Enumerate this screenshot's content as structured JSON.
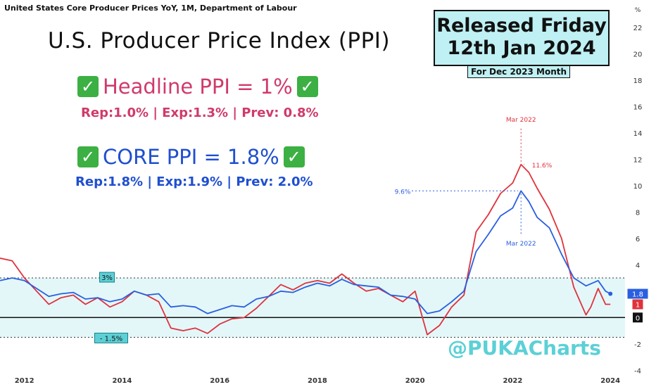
{
  "header": {
    "source": "United States Core Producer Prices YoY, 1M, Department of Labour",
    "title": "U.S. Producer Price Index (PPI)"
  },
  "headline": {
    "label": "Headline PPI = 1%",
    "details": "Rep:1.0%  | Exp:1.3% | Prev: 0.8%",
    "color": "#d03a6a"
  },
  "core": {
    "label": "CORE PPI = 1.8%",
    "details": "Rep:1.8%  | Exp:1.9% | Prev: 2.0%",
    "color": "#1f4fcf"
  },
  "release": {
    "line1": "Released Friday",
    "line2": "12th Jan 2024",
    "month": "For Dec 2023 Month"
  },
  "watermark": "@PUKACharts",
  "chart_data": {
    "type": "line",
    "y_unit_label": "%",
    "x_ticks": [
      "2012",
      "2014",
      "2016",
      "2018",
      "2020",
      "2022",
      "2024"
    ],
    "x_tick_values": [
      2012,
      2014,
      2016,
      2018,
      2020,
      2022,
      2024
    ],
    "y_ticks": [
      -4,
      -2,
      0,
      2,
      4,
      6,
      8,
      10,
      12,
      14,
      16,
      18,
      20,
      22
    ],
    "xlim": [
      2011.5,
      2024.3
    ],
    "ylim": [
      -4.2,
      23
    ],
    "band": {
      "low": -1.5,
      "high": 3.0,
      "high_label": "3%",
      "low_label": "- 1.5%"
    },
    "zero_line": 0,
    "series": [
      {
        "name": "Headline PPI",
        "color": "#e0323c",
        "last_label": "1",
        "points": [
          [
            2011.5,
            4.5
          ],
          [
            2011.75,
            4.3
          ],
          [
            2012.0,
            3.0
          ],
          [
            2012.25,
            2.0
          ],
          [
            2012.5,
            1.0
          ],
          [
            2012.75,
            1.5
          ],
          [
            2013.0,
            1.7
          ],
          [
            2013.25,
            1.0
          ],
          [
            2013.5,
            1.5
          ],
          [
            2013.75,
            0.8
          ],
          [
            2014.0,
            1.2
          ],
          [
            2014.25,
            2.0
          ],
          [
            2014.5,
            1.7
          ],
          [
            2014.75,
            1.2
          ],
          [
            2015.0,
            -0.8
          ],
          [
            2015.25,
            -1.0
          ],
          [
            2015.5,
            -0.8
          ],
          [
            2015.75,
            -1.2
          ],
          [
            2016.0,
            -0.5
          ],
          [
            2016.25,
            -0.1
          ],
          [
            2016.5,
            0.0
          ],
          [
            2016.75,
            0.7
          ],
          [
            2017.0,
            1.6
          ],
          [
            2017.25,
            2.5
          ],
          [
            2017.5,
            2.1
          ],
          [
            2017.75,
            2.6
          ],
          [
            2018.0,
            2.8
          ],
          [
            2018.25,
            2.6
          ],
          [
            2018.5,
            3.3
          ],
          [
            2018.75,
            2.6
          ],
          [
            2019.0,
            2.0
          ],
          [
            2019.25,
            2.2
          ],
          [
            2019.5,
            1.7
          ],
          [
            2019.75,
            1.2
          ],
          [
            2020.0,
            2.0
          ],
          [
            2020.25,
            -1.3
          ],
          [
            2020.5,
            -0.6
          ],
          [
            2020.75,
            0.8
          ],
          [
            2021.0,
            1.7
          ],
          [
            2021.25,
            6.5
          ],
          [
            2021.5,
            7.8
          ],
          [
            2021.75,
            9.4
          ],
          [
            2022.0,
            10.2
          ],
          [
            2022.17,
            11.6
          ],
          [
            2022.33,
            11.0
          ],
          [
            2022.5,
            9.8
          ],
          [
            2022.75,
            8.2
          ],
          [
            2023.0,
            6.0
          ],
          [
            2023.25,
            2.3
          ],
          [
            2023.5,
            0.2
          ],
          [
            2023.6,
            0.8
          ],
          [
            2023.75,
            2.2
          ],
          [
            2023.9,
            1.0
          ],
          [
            2024.0,
            1.0
          ]
        ]
      },
      {
        "name": "Core PPI",
        "color": "#2a5fe0",
        "last_label": "1.8",
        "points": [
          [
            2011.5,
            2.8
          ],
          [
            2011.75,
            3.0
          ],
          [
            2012.0,
            2.8
          ],
          [
            2012.25,
            2.2
          ],
          [
            2012.5,
            1.6
          ],
          [
            2012.75,
            1.8
          ],
          [
            2013.0,
            1.9
          ],
          [
            2013.25,
            1.4
          ],
          [
            2013.5,
            1.5
          ],
          [
            2013.75,
            1.2
          ],
          [
            2014.0,
            1.4
          ],
          [
            2014.25,
            2.0
          ],
          [
            2014.5,
            1.7
          ],
          [
            2014.75,
            1.8
          ],
          [
            2015.0,
            0.8
          ],
          [
            2015.25,
            0.9
          ],
          [
            2015.5,
            0.8
          ],
          [
            2015.75,
            0.3
          ],
          [
            2016.0,
            0.6
          ],
          [
            2016.25,
            0.9
          ],
          [
            2016.5,
            0.8
          ],
          [
            2016.75,
            1.4
          ],
          [
            2017.0,
            1.6
          ],
          [
            2017.25,
            2.0
          ],
          [
            2017.5,
            1.9
          ],
          [
            2017.75,
            2.3
          ],
          [
            2018.0,
            2.6
          ],
          [
            2018.25,
            2.4
          ],
          [
            2018.5,
            2.9
          ],
          [
            2018.75,
            2.5
          ],
          [
            2019.0,
            2.4
          ],
          [
            2019.25,
            2.3
          ],
          [
            2019.5,
            1.7
          ],
          [
            2019.75,
            1.6
          ],
          [
            2020.0,
            1.4
          ],
          [
            2020.25,
            0.3
          ],
          [
            2020.5,
            0.5
          ],
          [
            2020.75,
            1.2
          ],
          [
            2021.0,
            2.0
          ],
          [
            2021.25,
            5.0
          ],
          [
            2021.5,
            6.3
          ],
          [
            2021.75,
            7.7
          ],
          [
            2022.0,
            8.3
          ],
          [
            2022.17,
            9.6
          ],
          [
            2022.33,
            8.8
          ],
          [
            2022.5,
            7.6
          ],
          [
            2022.75,
            6.8
          ],
          [
            2023.0,
            4.8
          ],
          [
            2023.25,
            3.0
          ],
          [
            2023.5,
            2.4
          ],
          [
            2023.75,
            2.8
          ],
          [
            2023.9,
            2.0
          ],
          [
            2024.0,
            1.8
          ]
        ]
      }
    ],
    "annotations": [
      {
        "text": "Mar 2022",
        "series": "Headline PPI",
        "x": 2022.17,
        "y": 11.6,
        "position": "above"
      },
      {
        "text": "11.6%",
        "series": "Headline PPI",
        "x": 2022.17,
        "y": 11.6,
        "position": "right"
      },
      {
        "text": "9.6%",
        "series": "Core PPI",
        "x": 2022.17,
        "y": 9.6,
        "position": "left"
      },
      {
        "text": "Mar 2022",
        "series": "Core PPI",
        "x": 2022.17,
        "y": 9.6,
        "position": "below"
      }
    ]
  }
}
